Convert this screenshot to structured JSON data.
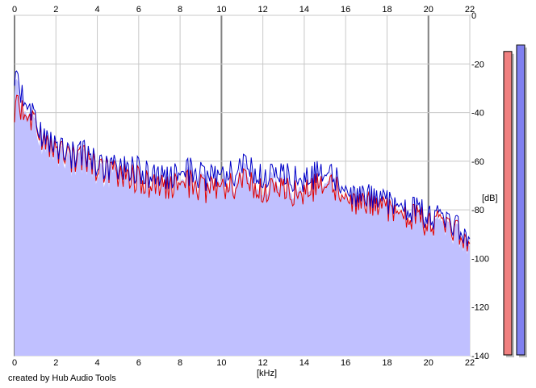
{
  "credit": "created by Hub Audio Tools",
  "colors": {
    "fill": "#c0c0ff",
    "left_channel": "#e00000",
    "right_channel": "#0000c8",
    "grid": "#c8c8c8",
    "grid_major": "#808080",
    "meter_left": "#f08080",
    "meter_right": "#8080f0"
  },
  "chart_data": {
    "type": "line",
    "xlabel": "[kHz]",
    "ylabel": "[dB]",
    "xlim": [
      0,
      22
    ],
    "ylim": [
      -140,
      0
    ],
    "x_ticks": [
      "0",
      "2",
      "4",
      "6",
      "8",
      "10",
      "12",
      "14",
      "16",
      "18",
      "20",
      "22"
    ],
    "y_ticks": [
      "0",
      "-20",
      "-40",
      "-60",
      "-80",
      "-100",
      "-120",
      "-140"
    ],
    "grid": true,
    "series": [
      {
        "color": "#0000c8",
        "x": [
          0,
          0.1,
          0.3,
          0.5,
          0.8,
          1.0,
          1.2,
          1.5,
          2.0,
          2.5,
          3.0,
          3.5,
          4.0,
          4.5,
          5.0,
          5.5,
          6.0,
          6.5,
          7.0,
          7.5,
          8.0,
          8.5,
          9.0,
          9.5,
          10.0,
          10.5,
          11.0,
          11.5,
          12.0,
          12.5,
          13.0,
          13.5,
          14.0,
          14.5,
          15.0,
          15.5,
          16.0,
          16.5,
          17.0,
          17.5,
          18.0,
          18.5,
          19.0,
          19.5,
          20.0,
          20.5,
          21.0,
          21.5,
          22.0
        ],
        "values": [
          -25,
          -24,
          -31,
          -35,
          -38,
          -45,
          -49,
          -50,
          -54,
          -57,
          -58,
          -57,
          -61,
          -63,
          -62,
          -63,
          -64,
          -65,
          -67,
          -66,
          -66,
          -64,
          -66,
          -67,
          -65,
          -66,
          -62,
          -63,
          -66,
          -64,
          -66,
          -68,
          -67,
          -66,
          -65,
          -68,
          -72,
          -73,
          -74,
          -76,
          -77,
          -79,
          -80,
          -81,
          -82,
          -84,
          -86,
          -88,
          -92
        ]
      },
      {
        "color": "#e00000",
        "x": [
          0,
          0.1,
          0.3,
          0.5,
          0.8,
          1.0,
          1.2,
          1.5,
          2.0,
          2.5,
          3.0,
          3.5,
          4.0,
          4.5,
          5.0,
          5.5,
          6.0,
          6.5,
          7.0,
          7.5,
          8.0,
          8.5,
          9.0,
          9.5,
          10.0,
          10.5,
          11.0,
          11.5,
          12.0,
          12.5,
          13.0,
          13.5,
          14.0,
          14.5,
          15.0,
          15.5,
          16.0,
          16.5,
          17.0,
          17.5,
          18.0,
          18.5,
          19.0,
          19.5,
          20.0,
          20.5,
          21.0,
          21.5,
          22.0
        ],
        "values": [
          -40,
          -34,
          -38,
          -40,
          -42,
          -46,
          -50,
          -52,
          -56,
          -58,
          -60,
          -59,
          -63,
          -64,
          -65,
          -66,
          -68,
          -69,
          -71,
          -70,
          -70,
          -69,
          -71,
          -72,
          -70,
          -71,
          -68,
          -69,
          -72,
          -70,
          -72,
          -74,
          -72,
          -71,
          -70,
          -72,
          -75,
          -76,
          -77,
          -79,
          -80,
          -82,
          -83,
          -84,
          -85,
          -86,
          -88,
          -90,
          -94
        ]
      }
    ]
  },
  "meters": {
    "left_level": 0.95,
    "right_level": 0.97
  }
}
